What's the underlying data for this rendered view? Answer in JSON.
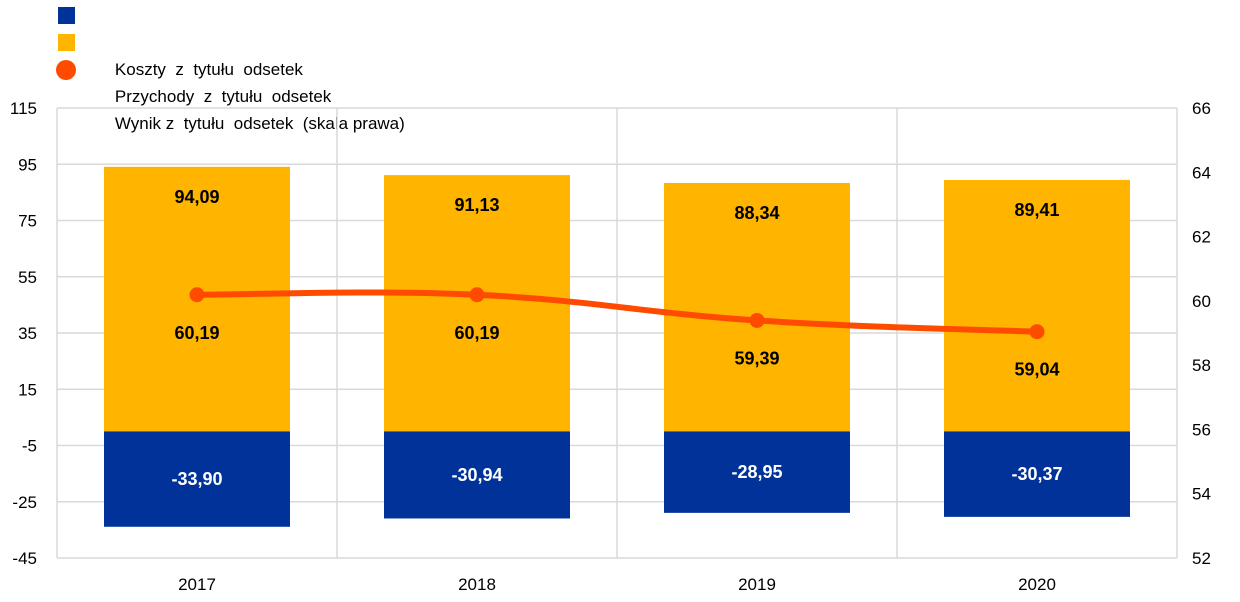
{
  "legend": {
    "items": [
      {
        "label": "Koszty  z  tytułu  odsetek",
        "color": "#003299",
        "marker": "square"
      },
      {
        "label": "Przychody  z  tytułu  odsetek",
        "color": "#FFB400",
        "marker": "square"
      },
      {
        "label": "Wynik z  tytułu  odsetek  (skala prawa)",
        "color": "#FF4B00",
        "marker": "circle"
      }
    ]
  },
  "chart_data": {
    "type": "bar",
    "categories": [
      "2017",
      "2018",
      "2019",
      "2020"
    ],
    "series": [
      {
        "name": "Koszty  z  tytułu  odsetek",
        "type": "bar",
        "axis": "left",
        "color": "#003299",
        "values": [
          -33.9,
          -30.94,
          -28.95,
          -30.37
        ],
        "labels": [
          "-33,90",
          "-30,94",
          "-28,95",
          "-30,37"
        ]
      },
      {
        "name": "Przychody  z  tytułu  odsetek",
        "type": "bar",
        "axis": "left",
        "color": "#FFB400",
        "values": [
          94.09,
          91.13,
          88.34,
          89.41
        ],
        "labels": [
          "94,09",
          "91,13",
          "88,34",
          "89,41"
        ]
      },
      {
        "name": "Wynik z  tytułu  odsetek  (skala prawa)",
        "type": "line",
        "axis": "right",
        "color": "#FF4B00",
        "values": [
          60.19,
          60.19,
          59.39,
          59.04
        ],
        "labels": [
          "60,19",
          "60,19",
          "59,39",
          "59,04"
        ]
      }
    ],
    "y_left": {
      "min": -45,
      "max": 115,
      "ticks": [
        "115",
        "95",
        "75",
        "55",
        "35",
        "15",
        "-5",
        "-25",
        "-45"
      ]
    },
    "y_right": {
      "min": 52,
      "max": 66,
      "ticks": [
        "66",
        "64",
        "62",
        "60",
        "58",
        "56",
        "54",
        "52"
      ]
    },
    "grid": true,
    "legend_position": "top-left"
  }
}
